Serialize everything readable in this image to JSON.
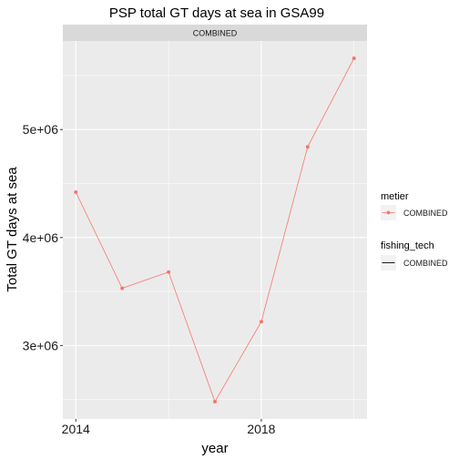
{
  "chart_data": {
    "type": "line",
    "title": "PSP total GT days at sea in GSA99",
    "facet_label": "COMBINED",
    "xlabel": "year",
    "ylabel": "Total GT days at sea",
    "x": [
      2014,
      2015,
      2016,
      2017,
      2018,
      2019,
      2020
    ],
    "series": [
      {
        "name": "COMBINED",
        "values": [
          4420000,
          3530000,
          3680000,
          2480000,
          3220000,
          4840000,
          5660000
        ]
      }
    ],
    "xlim": [
      2013.72,
      2020.28
    ],
    "ylim": [
      2320000,
      5820000
    ],
    "x_ticks": [
      2014,
      2018
    ],
    "x_tick_labels": [
      "2014",
      "2018"
    ],
    "x_minor_ticks": [
      2016,
      2020
    ],
    "y_ticks": [
      3000000,
      4000000,
      5000000
    ],
    "y_tick_labels": [
      "3e+06",
      "4e+06",
      "5e+06"
    ],
    "y_minor_ticks": [
      2500000,
      3500000,
      4500000,
      5500000
    ],
    "grid": true,
    "legend_position": "right",
    "legends": [
      {
        "title": "metier",
        "entries": [
          "COMBINED"
        ]
      },
      {
        "title": "fishing_tech",
        "entries": [
          "COMBINED"
        ]
      }
    ],
    "colors": {
      "series": "#F8766D",
      "panel_bg": "#EBEBEB",
      "strip_bg": "#D9D9D9",
      "grid": "#FFFFFF",
      "legend_line": "#000000"
    }
  }
}
